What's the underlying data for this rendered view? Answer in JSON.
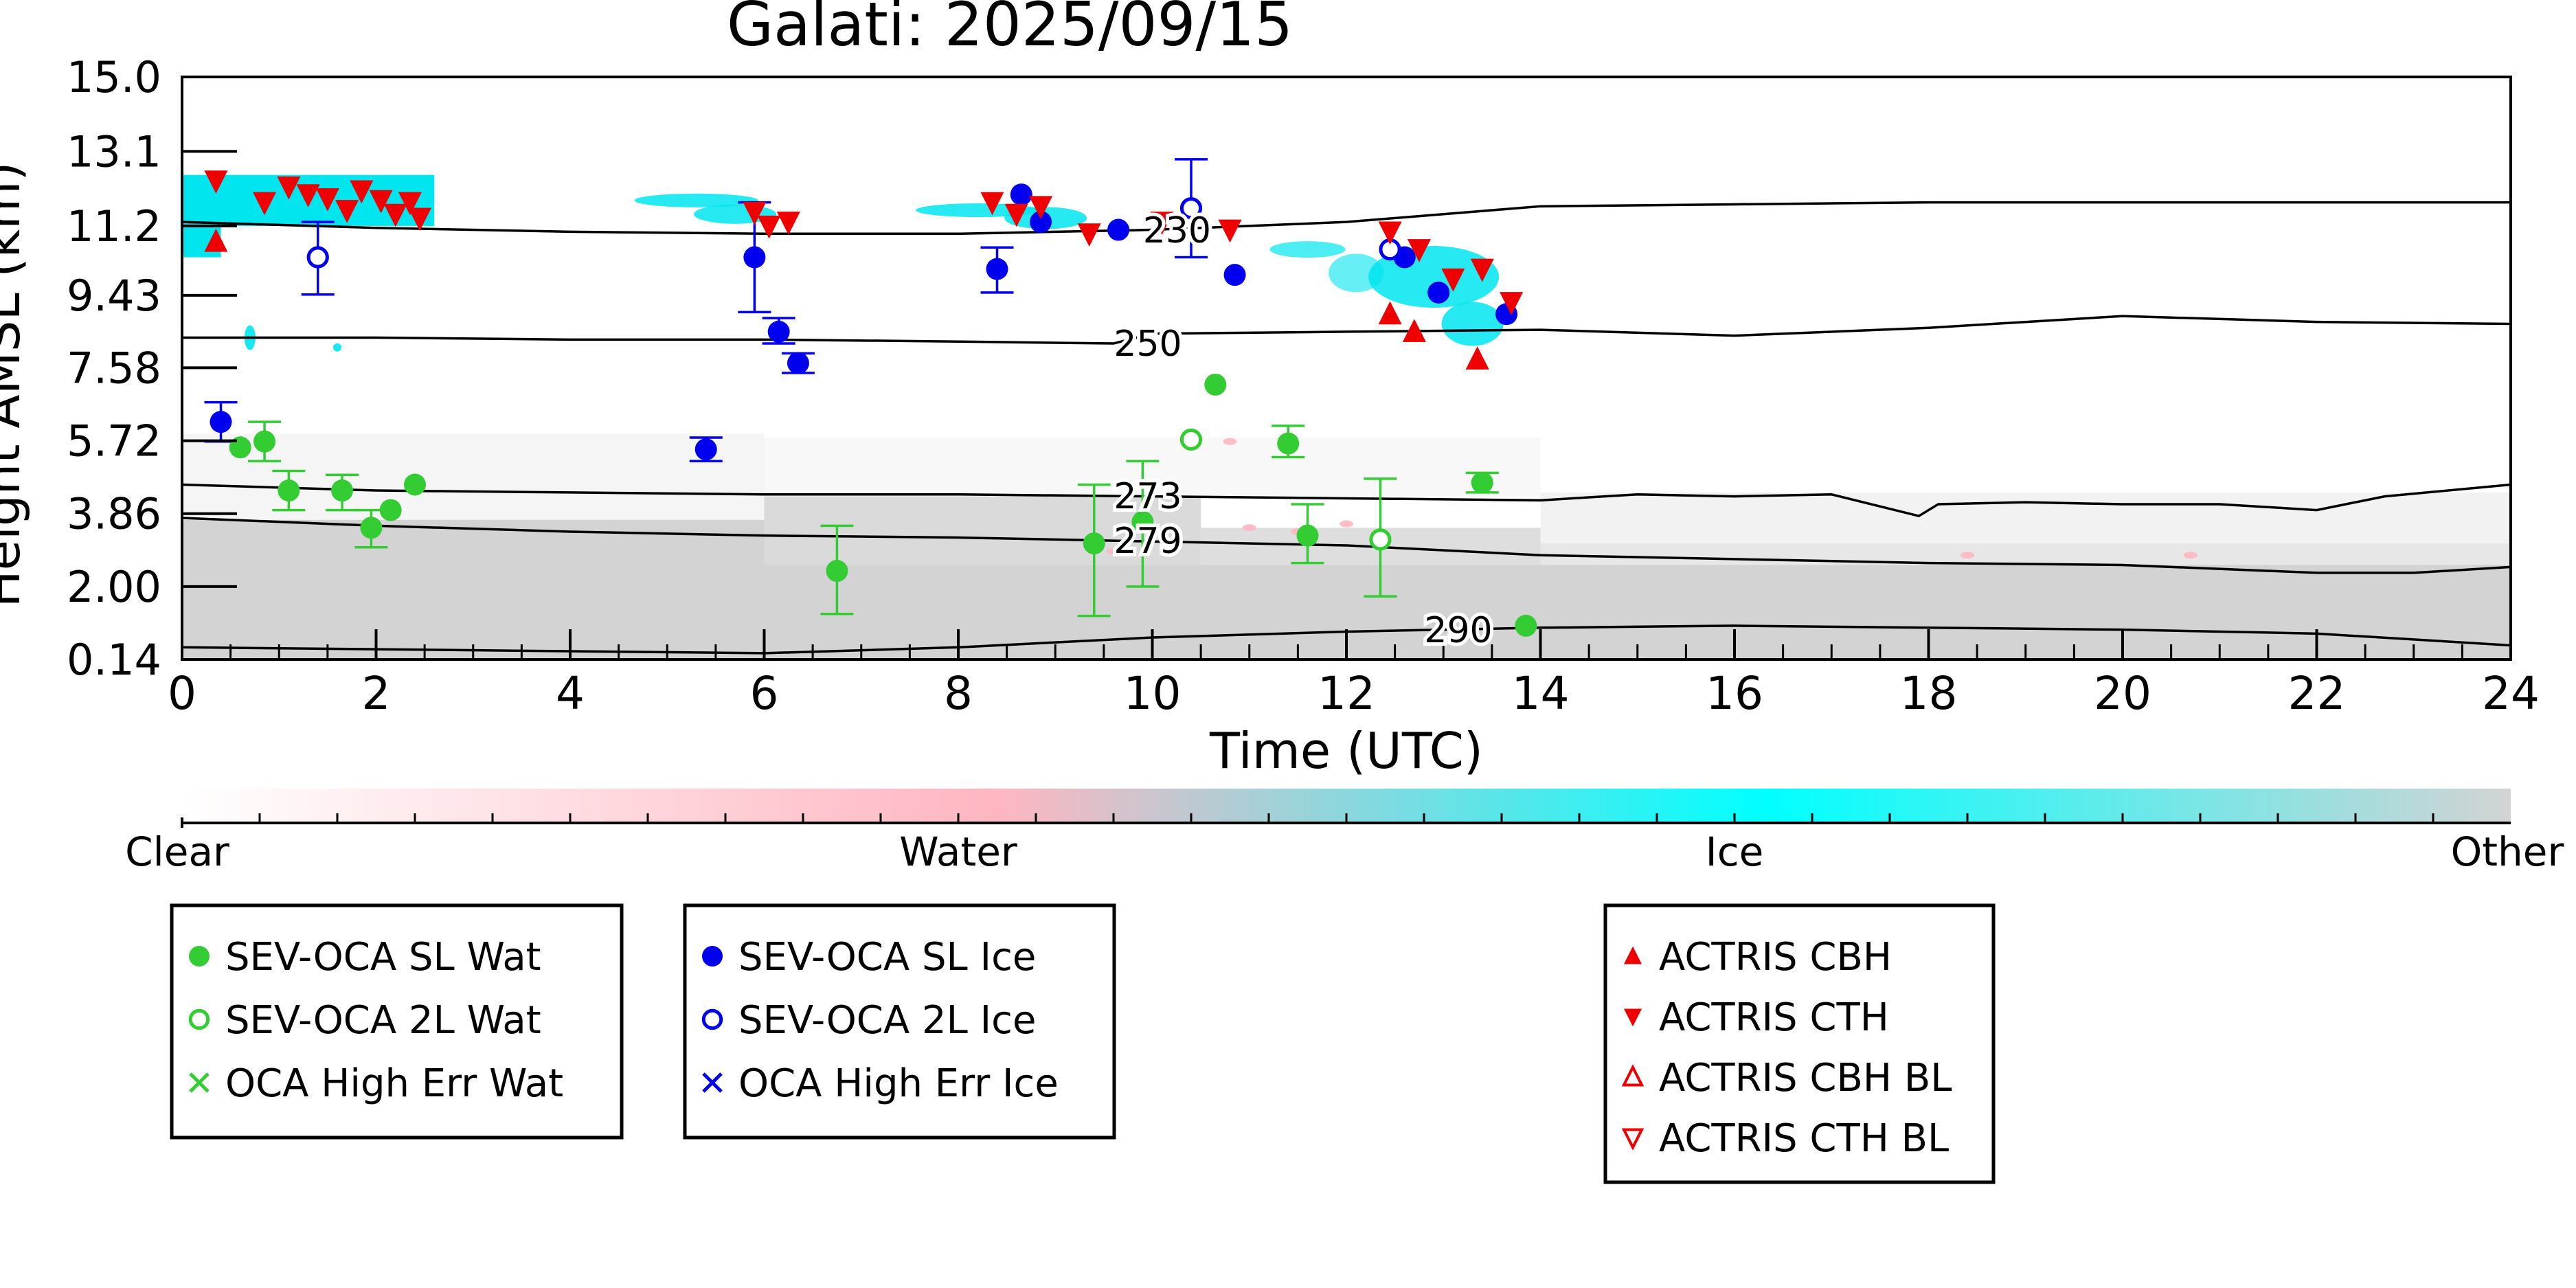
{
  "chart_data": {
    "type": "scatter",
    "title": "Galati: 2025/09/15",
    "xlabel": "Time (UTC)",
    "ylabel": "Height AMSL (km)",
    "xlim": [
      0,
      24
    ],
    "ylim": [
      0.14,
      15.0
    ],
    "x_ticks": [
      0,
      2,
      4,
      6,
      8,
      10,
      12,
      14,
      16,
      18,
      20,
      22,
      24
    ],
    "y_ticks": [
      0.14,
      2.0,
      3.86,
      5.72,
      7.58,
      9.43,
      11.2,
      13.1,
      15.0
    ],
    "y_tick_labels": [
      "0.14",
      "2.00",
      "3.86",
      "5.72",
      "7.58",
      "9.43",
      "11.2",
      "13.1",
      "15.0"
    ],
    "colorbar": {
      "labels": [
        "Clear",
        "Water",
        "Ice",
        "Other"
      ],
      "colors": [
        "#ffffff",
        "#ffb6c1",
        "#00ffff",
        "#d3d3d3"
      ]
    },
    "colors": {
      "water": "#33cc33",
      "ice": "#0000ee",
      "actris": "#ee0000",
      "cloud_ice": "#00e5ee",
      "cloud_other": "#d3d3d3",
      "cloud_water": "#ffb6c1"
    },
    "legends": [
      {
        "entries": [
          {
            "label": "SEV-OCA SL Wat",
            "marker": "filled-circle",
            "color": "#33cc33"
          },
          {
            "label": "SEV-OCA 2L Wat",
            "marker": "open-circle",
            "color": "#33cc33"
          },
          {
            "label": "OCA High Err Wat",
            "marker": "x",
            "color": "#33cc33"
          }
        ]
      },
      {
        "entries": [
          {
            "label": "SEV-OCA SL Ice",
            "marker": "filled-circle",
            "color": "#0000ee"
          },
          {
            "label": "SEV-OCA 2L Ice",
            "marker": "open-circle",
            "color": "#0000ee"
          },
          {
            "label": "OCA High Err Ice",
            "marker": "x",
            "color": "#0000ee"
          }
        ]
      },
      {
        "entries": [
          {
            "label": "ACTRIS CBH",
            "marker": "triangle-up",
            "color": "#ee0000"
          },
          {
            "label": "ACTRIS CTH",
            "marker": "triangle-down",
            "color": "#ee0000"
          },
          {
            "label": "ACTRIS CBH BL",
            "marker": "open-triangle-up",
            "color": "#ee0000"
          },
          {
            "label": "ACTRIS CTH BL",
            "marker": "open-triangle-down",
            "color": "#ee0000"
          }
        ]
      }
    ],
    "isotherms": [
      {
        "label": "230",
        "label_x": 9.9,
        "x": [
          0,
          2,
          4,
          6,
          8,
          10,
          12,
          13,
          14,
          16,
          18,
          20,
          22,
          24
        ],
        "y": [
          11.3,
          11.15,
          11.05,
          11.0,
          11.0,
          11.1,
          11.3,
          11.5,
          11.7,
          11.75,
          11.8,
          11.8,
          11.8,
          11.8
        ]
      },
      {
        "label": "250",
        "label_x": 9.6,
        "x": [
          0,
          2,
          4,
          6,
          8,
          9.6,
          10,
          12,
          14,
          16,
          18,
          20,
          22,
          24
        ],
        "y": [
          8.35,
          8.35,
          8.3,
          8.3,
          8.25,
          8.2,
          8.45,
          8.5,
          8.55,
          8.4,
          8.6,
          8.9,
          8.75,
          8.7
        ]
      },
      {
        "label": "273",
        "label_x": 9.6,
        "x": [
          0,
          2,
          4,
          6,
          8,
          10,
          12,
          14,
          15,
          16,
          17,
          17.9,
          18.1,
          19,
          20,
          21,
          22,
          22.7,
          24
        ],
        "y": [
          4.6,
          4.45,
          4.4,
          4.35,
          4.35,
          4.3,
          4.25,
          4.2,
          4.35,
          4.3,
          4.35,
          3.8,
          4.1,
          4.15,
          4.1,
          4.1,
          3.95,
          4.3,
          4.6
        ]
      },
      {
        "label": "279",
        "label_x": 9.6,
        "x": [
          0,
          2,
          4,
          6,
          8,
          10,
          12,
          14,
          16,
          18,
          20,
          22,
          23,
          24
        ],
        "y": [
          3.75,
          3.55,
          3.4,
          3.3,
          3.25,
          3.15,
          3.05,
          2.8,
          2.7,
          2.6,
          2.55,
          2.35,
          2.35,
          2.5
        ]
      },
      {
        "label": "290",
        "label_x": 12.8,
        "x": [
          0,
          2,
          4,
          6,
          8,
          10,
          12,
          14,
          16,
          18,
          20,
          22,
          24
        ],
        "y": [
          0.45,
          0.4,
          0.35,
          0.3,
          0.45,
          0.7,
          0.85,
          0.95,
          1.0,
          0.95,
          0.9,
          0.8,
          0.5
        ]
      }
    ],
    "series": [
      {
        "name": "SEV-OCA SL Wat",
        "marker": "filled-circle",
        "color": "#33cc33",
        "points": [
          {
            "x": 0.6,
            "y": 5.55
          },
          {
            "x": 0.85,
            "y": 5.7,
            "err": [
              5.2,
              6.2
            ]
          },
          {
            "x": 1.1,
            "y": 4.45,
            "err": [
              3.95,
              4.95
            ]
          },
          {
            "x": 1.65,
            "y": 4.45,
            "err": [
              3.95,
              4.85
            ]
          },
          {
            "x": 1.95,
            "y": 3.5,
            "err": [
              3.0,
              3.95
            ]
          },
          {
            "x": 2.15,
            "y": 3.95
          },
          {
            "x": 2.4,
            "y": 4.6
          },
          {
            "x": 6.75,
            "y": 2.4,
            "err": [
              1.3,
              3.55
            ]
          },
          {
            "x": 9.4,
            "y": 3.1,
            "err": [
              1.25,
              4.6
            ]
          },
          {
            "x": 9.9,
            "y": 3.65,
            "err": [
              2.0,
              5.2
            ]
          },
          {
            "x": 10.65,
            "y": 7.15
          },
          {
            "x": 11.4,
            "y": 5.65,
            "err": [
              5.3,
              6.1
            ]
          },
          {
            "x": 11.6,
            "y": 3.3,
            "err": [
              2.6,
              4.1
            ]
          },
          {
            "x": 13.4,
            "y": 4.65,
            "err": [
              4.4,
              4.9
            ]
          },
          {
            "x": 13.85,
            "y": 1.0
          }
        ]
      },
      {
        "name": "SEV-OCA 2L Wat",
        "marker": "open-circle",
        "color": "#33cc33",
        "points": [
          {
            "x": 10.4,
            "y": 5.75
          },
          {
            "x": 12.35,
            "y": 3.2,
            "err": [
              1.75,
              4.75
            ]
          }
        ]
      },
      {
        "name": "SEV-OCA SL Ice",
        "marker": "filled-circle",
        "color": "#0000ee",
        "points": [
          {
            "x": 0.4,
            "y": 6.2,
            "err": [
              5.7,
              6.7
            ]
          },
          {
            "x": 5.4,
            "y": 5.5,
            "err": [
              5.2,
              5.8
            ]
          },
          {
            "x": 5.9,
            "y": 10.4,
            "err": [
              9.0,
              11.8
            ]
          },
          {
            "x": 6.15,
            "y": 8.5,
            "err": [
              8.2,
              8.85
            ]
          },
          {
            "x": 6.35,
            "y": 7.7,
            "err": [
              7.45,
              7.95
            ]
          },
          {
            "x": 8.4,
            "y": 10.1,
            "err": [
              9.5,
              10.65
            ]
          },
          {
            "x": 8.65,
            "y": 12.0
          },
          {
            "x": 8.85,
            "y": 11.3
          },
          {
            "x": 9.65,
            "y": 11.1
          },
          {
            "x": 10.85,
            "y": 9.95
          },
          {
            "x": 12.6,
            "y": 10.4
          },
          {
            "x": 12.95,
            "y": 9.5
          },
          {
            "x": 13.65,
            "y": 8.95
          }
        ]
      },
      {
        "name": "SEV-OCA 2L Ice",
        "marker": "open-circle",
        "color": "#0000ee",
        "points": [
          {
            "x": 1.4,
            "y": 10.4,
            "err": [
              9.45,
              11.3
            ]
          },
          {
            "x": 10.4,
            "y": 11.65,
            "err": [
              10.4,
              12.9
            ]
          },
          {
            "x": 12.45,
            "y": 10.6
          }
        ]
      },
      {
        "name": "ACTRIS CBH",
        "marker": "triangle-up",
        "color": "#ee0000",
        "points": [
          {
            "x": 0.35,
            "y": 10.8
          },
          {
            "x": 12.45,
            "y": 8.95
          },
          {
            "x": 12.7,
            "y": 8.5
          },
          {
            "x": 13.35,
            "y": 7.8
          }
        ]
      },
      {
        "name": "ACTRIS CTH",
        "marker": "triangle-down",
        "color": "#ee0000",
        "points": [
          {
            "x": 0.35,
            "y": 12.35
          },
          {
            "x": 0.85,
            "y": 11.8
          },
          {
            "x": 1.1,
            "y": 12.2
          },
          {
            "x": 1.3,
            "y": 12.0
          },
          {
            "x": 1.5,
            "y": 11.9
          },
          {
            "x": 1.7,
            "y": 11.6
          },
          {
            "x": 1.85,
            "y": 12.1
          },
          {
            "x": 2.05,
            "y": 11.85
          },
          {
            "x": 2.2,
            "y": 11.5
          },
          {
            "x": 2.35,
            "y": 11.8
          },
          {
            "x": 2.45,
            "y": 11.4
          },
          {
            "x": 5.9,
            "y": 11.55
          },
          {
            "x": 6.05,
            "y": 11.2
          },
          {
            "x": 6.25,
            "y": 11.3
          },
          {
            "x": 8.35,
            "y": 11.8
          },
          {
            "x": 8.6,
            "y": 11.5
          },
          {
            "x": 8.85,
            "y": 11.7
          },
          {
            "x": 9.35,
            "y": 11.0
          },
          {
            "x": 10.1,
            "y": 11.3
          },
          {
            "x": 10.8,
            "y": 11.1
          },
          {
            "x": 12.45,
            "y": 11.05
          },
          {
            "x": 12.75,
            "y": 10.6
          },
          {
            "x": 13.1,
            "y": 9.85
          },
          {
            "x": 13.4,
            "y": 10.1
          },
          {
            "x": 13.7,
            "y": 9.25
          }
        ]
      }
    ]
  }
}
